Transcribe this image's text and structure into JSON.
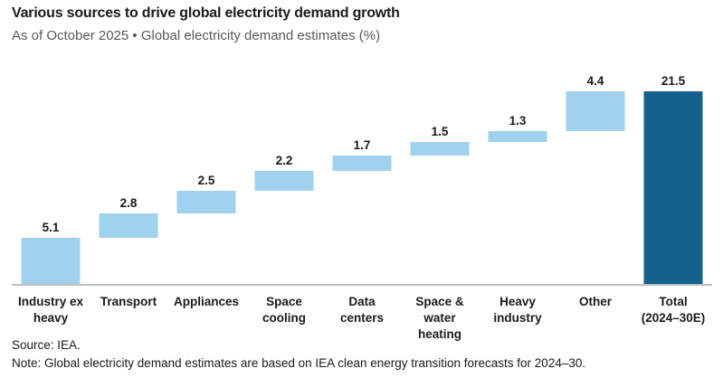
{
  "header": {
    "title": "Various sources to drive global electricity demand growth",
    "subtitle": "As of October 2025 • Global electricity demand estimates (%)"
  },
  "chart_data": {
    "type": "bar",
    "subtype": "waterfall",
    "title": "Various sources to drive global electricity demand growth",
    "subtitle": "As of October 2025 • Global electricity demand estimates (%)",
    "unit": "%",
    "categories": [
      "Industry ex\nheavy",
      "Transport",
      "Appliances",
      "Space\ncooling",
      "Data\ncenters",
      "Space & water\nheating",
      "Heavy\nindustry",
      "Other",
      "Total\n(2024–30E)"
    ],
    "values": [
      5.1,
      2.8,
      2.5,
      2.2,
      1.7,
      1.5,
      1.3,
      4.4,
      21.5
    ],
    "value_labels": [
      "5.1",
      "2.8",
      "2.5",
      "2.2",
      "1.7",
      "1.5",
      "1.3",
      "4.4",
      "21.5"
    ],
    "is_total": [
      false,
      false,
      false,
      false,
      false,
      false,
      false,
      false,
      true
    ],
    "cumulative_starts": [
      0,
      5.1,
      7.9,
      10.4,
      12.6,
      14.3,
      15.8,
      17.1,
      0
    ],
    "ylim": [
      0,
      21.5
    ],
    "grid": false,
    "legend": "none",
    "colors": {
      "increment": "#a0d1ef",
      "total": "#15618e",
      "axis": "#bfbfbf",
      "label": "#1a1a1a"
    }
  },
  "footer": {
    "source": "Source: IEA.",
    "note": "Note: Global electricity demand estimates are based on IEA clean energy transition forecasts for 2024–30."
  }
}
